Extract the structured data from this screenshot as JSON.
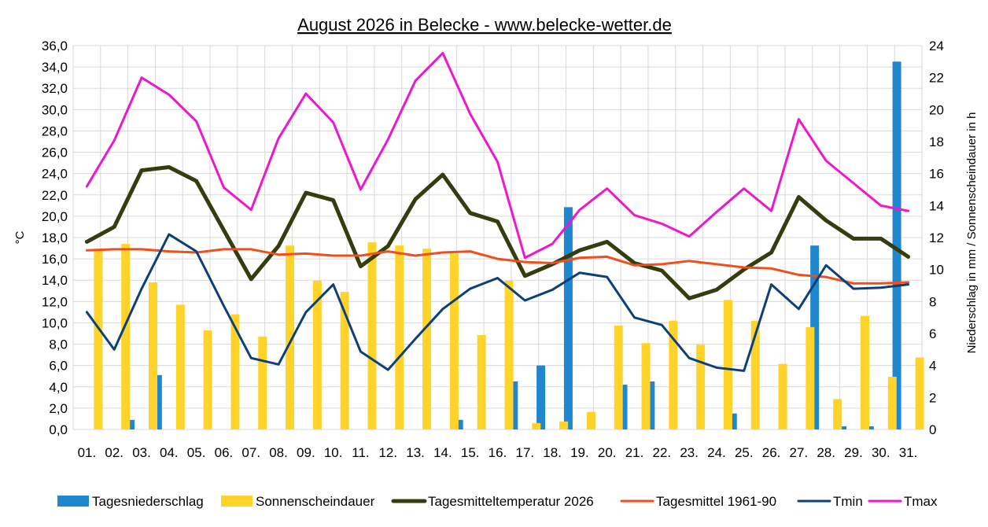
{
  "chart_data": {
    "type": "bar",
    "title": "August 2026 in Belecke - www.belecke-wetter.de",
    "ylabel": "°C",
    "y2label": "Niederschlag in mm / Sonnenscheindauer in h",
    "ylim": [
      0,
      36
    ],
    "y2lim": [
      0,
      24
    ],
    "yticks": [
      "0,0",
      "2,0",
      "4,0",
      "6,0",
      "8,0",
      "10,0",
      "12,0",
      "14,0",
      "16,0",
      "18,0",
      "20,0",
      "22,0",
      "24,0",
      "26,0",
      "28,0",
      "30,0",
      "32,0",
      "34,0",
      "36,0"
    ],
    "y2ticks": [
      "0",
      "2",
      "4",
      "6",
      "8",
      "10",
      "12",
      "14",
      "16",
      "18",
      "20",
      "22",
      "24"
    ],
    "categories": [
      "01.",
      "02.",
      "03.",
      "04.",
      "05.",
      "06.",
      "07.",
      "08.",
      "09.",
      "10.",
      "11.",
      "12.",
      "13.",
      "14.",
      "15.",
      "16.",
      "17.",
      "18.",
      "19.",
      "20.",
      "21.",
      "22.",
      "23.",
      "24.",
      "25.",
      "26.",
      "27.",
      "28.",
      "29.",
      "30.",
      "31."
    ],
    "grid": true,
    "legend_position": "bottom",
    "series": [
      {
        "name": "Tagesniederschlag",
        "kind": "bar",
        "axis": "right",
        "color": "#1f86d0",
        "values": [
          0,
          0,
          0.6,
          3.4,
          0,
          0,
          0,
          0,
          0,
          0,
          0,
          0,
          0,
          0,
          0.6,
          0,
          3.0,
          4.0,
          13.9,
          0,
          2.8,
          3.0,
          0,
          0,
          1.0,
          0,
          0,
          11.5,
          0.2,
          0.2,
          23.0
        ]
      },
      {
        "name": "Sonnenscheindauer",
        "kind": "bar",
        "axis": "right",
        "color": "#ffd32a",
        "values": [
          11.3,
          11.6,
          9.2,
          7.8,
          6.2,
          7.2,
          5.8,
          11.5,
          9.3,
          8.6,
          11.7,
          11.5,
          11.3,
          11.0,
          5.9,
          9.3,
          0.4,
          0.5,
          1.1,
          6.5,
          5.4,
          6.8,
          5.3,
          8.1,
          6.8,
          4.1,
          6.4,
          1.9,
          7.1,
          3.3,
          4.5
        ]
      },
      {
        "name": "Tagesmitteltemperatur 2026",
        "kind": "line",
        "axis": "left",
        "color": "#333d0d",
        "values": [
          17.6,
          19.0,
          24.3,
          24.6,
          23.3,
          18.7,
          14.1,
          17.2,
          22.2,
          21.5,
          15.3,
          17.2,
          21.6,
          23.9,
          20.3,
          19.5,
          14.4,
          15.5,
          16.8,
          17.6,
          15.6,
          14.9,
          12.3,
          13.1,
          15.0,
          16.6,
          21.8,
          19.6,
          17.9,
          17.9,
          16.2
        ]
      },
      {
        "name": "Tagesmittel 1961-90",
        "kind": "line",
        "axis": "left",
        "color": "#f04e1d",
        "values": [
          16.8,
          16.9,
          16.9,
          16.7,
          16.6,
          16.9,
          16.9,
          16.4,
          16.5,
          16.3,
          16.3,
          16.7,
          16.3,
          16.6,
          16.7,
          16.0,
          15.7,
          15.6,
          16.1,
          16.2,
          15.4,
          15.5,
          15.8,
          15.5,
          15.2,
          15.1,
          14.5,
          14.3,
          13.7,
          13.7,
          13.8
        ]
      },
      {
        "name": "Tmin",
        "kind": "line",
        "axis": "left",
        "color": "#0d3f78",
        "values": [
          11.0,
          7.5,
          13.2,
          18.3,
          16.7,
          11.6,
          6.7,
          6.1,
          11.0,
          13.6,
          7.3,
          5.6,
          8.5,
          11.3,
          13.2,
          14.2,
          12.1,
          13.1,
          14.7,
          14.3,
          10.5,
          9.8,
          6.7,
          5.8,
          5.5,
          13.6,
          11.3,
          15.4,
          13.2,
          13.3,
          13.6
        ]
      },
      {
        "name": "Tmax",
        "kind": "line",
        "axis": "left",
        "color": "#ef16cd",
        "values": [
          22.8,
          27.1,
          33.0,
          31.4,
          28.9,
          22.7,
          20.6,
          27.3,
          31.5,
          28.8,
          22.5,
          27.2,
          32.7,
          35.3,
          29.6,
          25.1,
          16.1,
          17.4,
          20.6,
          22.6,
          20.1,
          19.3,
          18.1,
          20.4,
          22.6,
          20.5,
          29.1,
          25.2,
          23.1,
          21.0,
          20.5
        ]
      }
    ]
  }
}
